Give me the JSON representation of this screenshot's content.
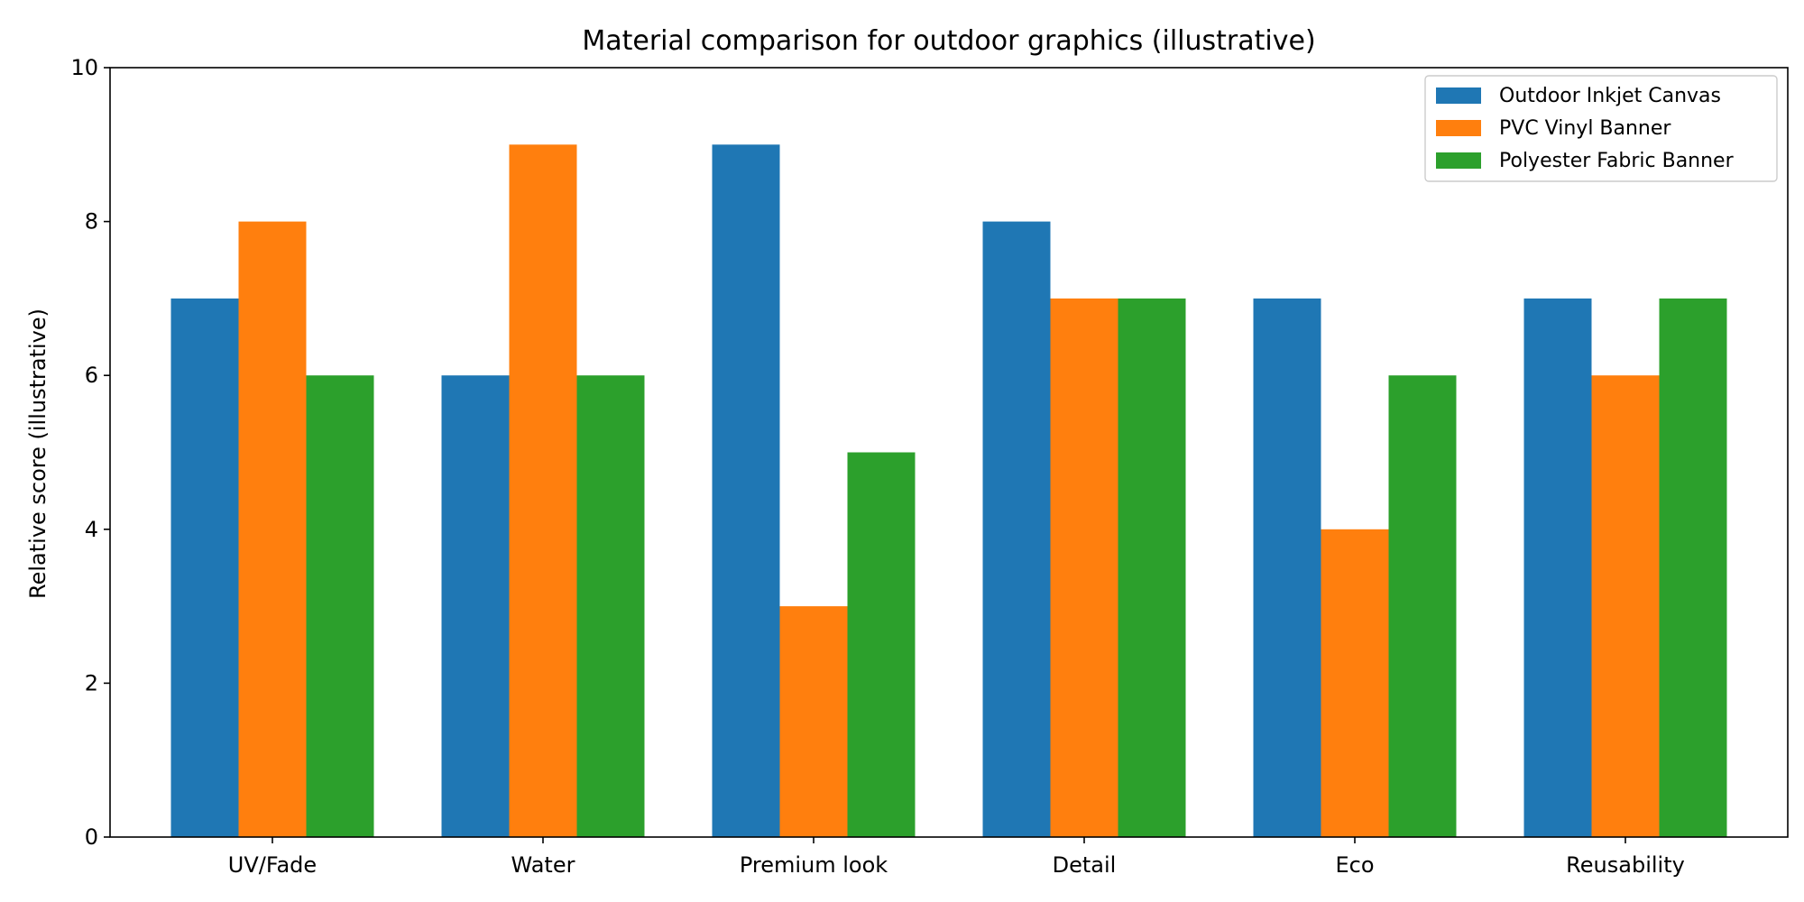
{
  "chart_data": {
    "type": "bar",
    "title": "Material comparison for outdoor graphics (illustrative)",
    "xlabel": "",
    "ylabel": "Relative score (illustrative)",
    "ylim": [
      0,
      10
    ],
    "yticks": [
      0,
      2,
      4,
      6,
      8,
      10
    ],
    "categories": [
      "UV/Fade",
      "Water",
      "Premium look",
      "Detail",
      "Eco",
      "Reusability"
    ],
    "series": [
      {
        "name": "Outdoor Inkjet Canvas",
        "color": "#1f77b4",
        "values": [
          7,
          6,
          9,
          8,
          7,
          7
        ]
      },
      {
        "name": "PVC Vinyl Banner",
        "color": "#ff7f0e",
        "values": [
          8,
          9,
          3,
          7,
          4,
          6
        ]
      },
      {
        "name": "Polyester Fabric Banner",
        "color": "#2ca02c",
        "values": [
          6,
          6,
          5,
          7,
          6,
          7
        ]
      }
    ],
    "grid": false,
    "legend_position": "top-right"
  }
}
